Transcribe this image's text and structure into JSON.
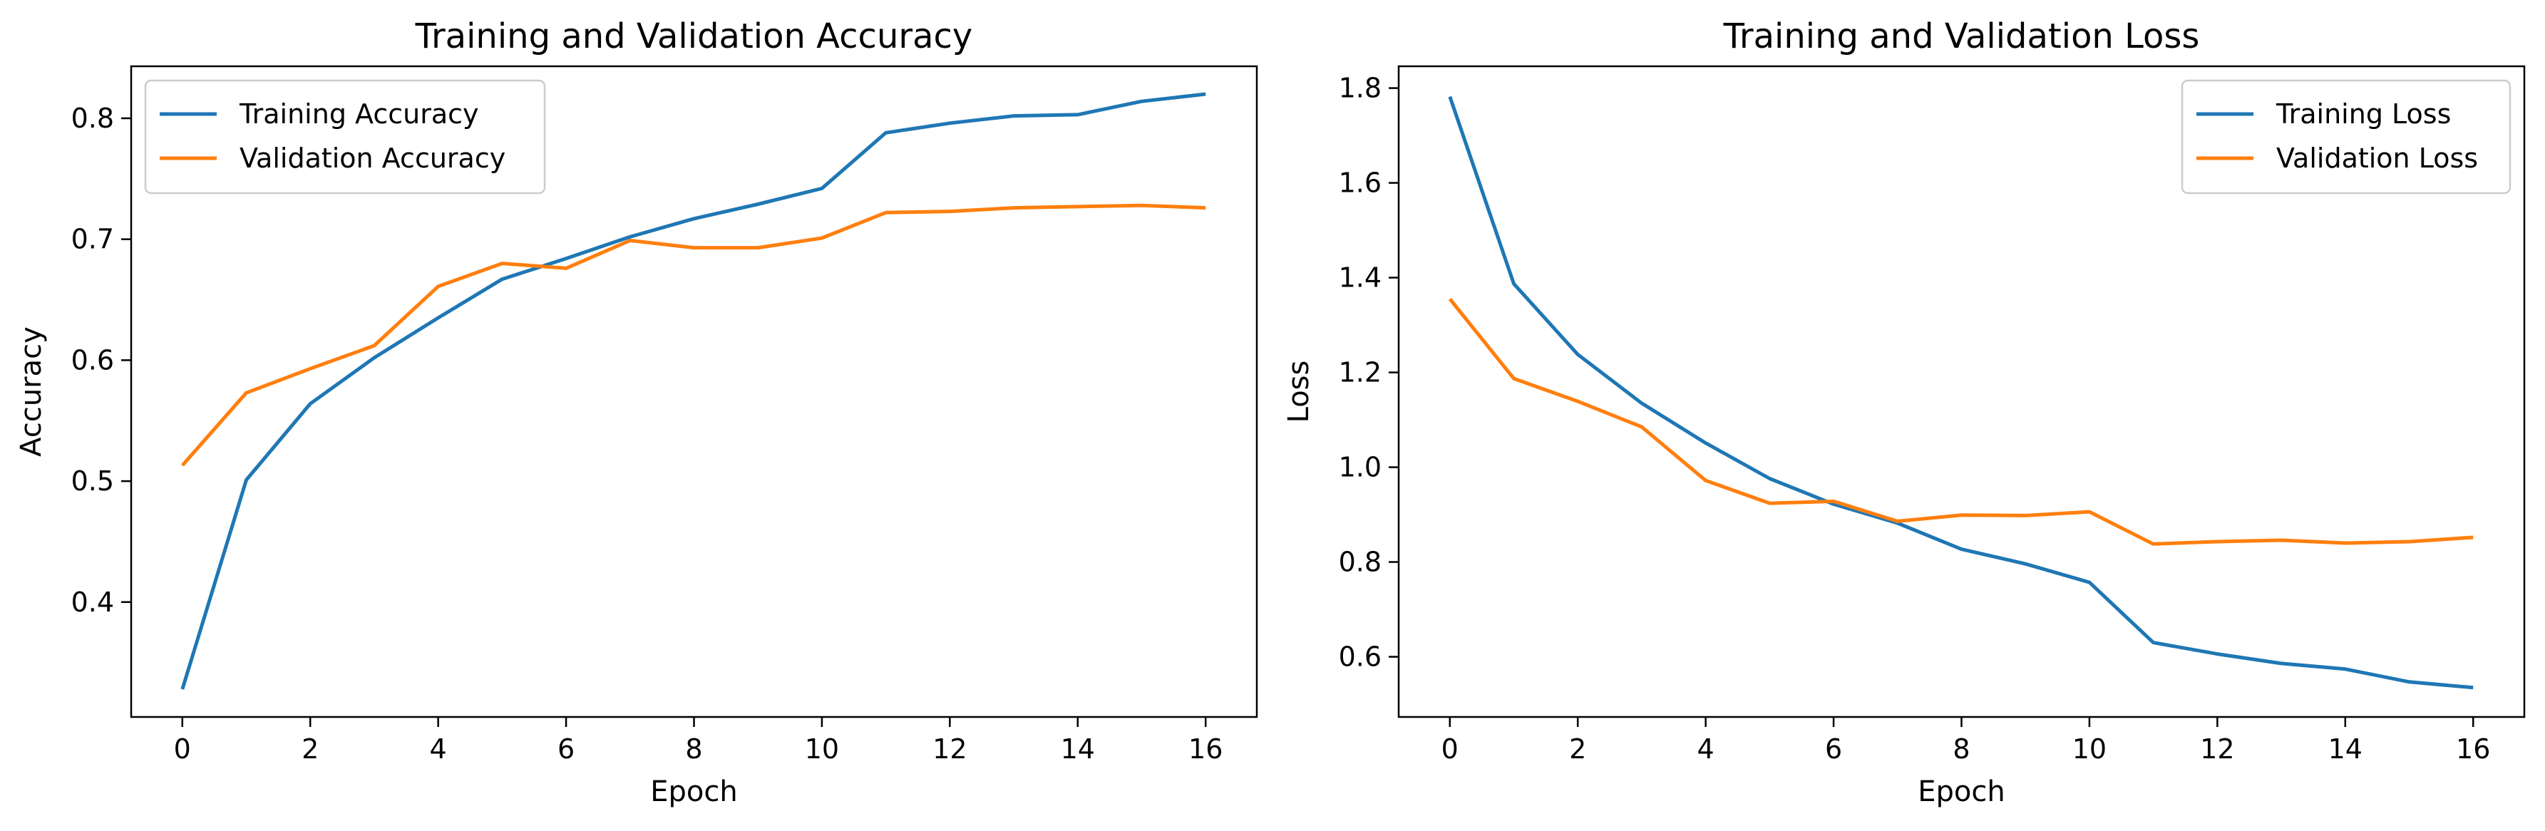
{
  "chart_data": [
    {
      "type": "line",
      "title": "Training and Validation Accuracy",
      "xlabel": "Epoch",
      "ylabel": "Accuracy",
      "x": [
        0,
        1,
        2,
        3,
        4,
        5,
        6,
        7,
        8,
        9,
        10,
        11,
        12,
        13,
        14,
        15,
        16
      ],
      "xlim": [
        -0.8,
        16.8
      ],
      "ylim": [
        0.305,
        0.843
      ],
      "xticks": [
        0,
        2,
        4,
        6,
        8,
        10,
        12,
        14,
        16
      ],
      "yticks": [
        0.4,
        0.5,
        0.6,
        0.7,
        0.8
      ],
      "xtick_labels": [
        "0",
        "2",
        "4",
        "6",
        "8",
        "10",
        "12",
        "14",
        "16"
      ],
      "ytick_labels": [
        "0.4",
        "0.5",
        "0.6",
        "0.7",
        "0.8"
      ],
      "legend_position": "upper-left",
      "grid": false,
      "series": [
        {
          "name": "Training Accuracy",
          "color": "#1f77b4",
          "values": [
            0.328,
            0.501,
            0.564,
            0.602,
            0.635,
            0.667,
            0.684,
            0.702,
            0.717,
            0.729,
            0.742,
            0.788,
            0.796,
            0.802,
            0.803,
            0.814,
            0.82
          ]
        },
        {
          "name": "Validation Accuracy",
          "color": "#ff7f0e",
          "values": [
            0.513,
            0.573,
            0.593,
            0.612,
            0.661,
            0.68,
            0.676,
            0.699,
            0.693,
            0.693,
            0.701,
            0.722,
            0.723,
            0.726,
            0.727,
            0.728,
            0.726
          ]
        }
      ]
    },
    {
      "type": "line",
      "title": "Training and Validation Loss",
      "xlabel": "Epoch",
      "ylabel": "Loss",
      "x": [
        0,
        1,
        2,
        3,
        4,
        5,
        6,
        7,
        8,
        9,
        10,
        11,
        12,
        13,
        14,
        15,
        16
      ],
      "xlim": [
        -0.8,
        16.8
      ],
      "ylim": [
        0.473,
        1.846
      ],
      "xticks": [
        0,
        2,
        4,
        6,
        8,
        10,
        12,
        14,
        16
      ],
      "yticks": [
        0.6,
        0.8,
        1.0,
        1.2,
        1.4,
        1.6,
        1.8
      ],
      "xtick_labels": [
        "0",
        "2",
        "4",
        "6",
        "8",
        "10",
        "12",
        "14",
        "16"
      ],
      "ytick_labels": [
        "0.6",
        "0.8",
        "1.0",
        "1.2",
        "1.4",
        "1.6",
        "1.8"
      ],
      "legend_position": "upper-right",
      "grid": false,
      "series": [
        {
          "name": "Training Loss",
          "color": "#1f77b4",
          "values": [
            1.782,
            1.387,
            1.238,
            1.135,
            1.051,
            0.976,
            0.922,
            0.882,
            0.827,
            0.796,
            0.757,
            0.63,
            0.606,
            0.586,
            0.574,
            0.547,
            0.535
          ]
        },
        {
          "name": "Validation Loss",
          "color": "#ff7f0e",
          "values": [
            1.355,
            1.187,
            1.139,
            1.085,
            0.972,
            0.924,
            0.928,
            0.886,
            0.899,
            0.898,
            0.906,
            0.838,
            0.843,
            0.846,
            0.84,
            0.843,
            0.852
          ]
        }
      ]
    }
  ]
}
